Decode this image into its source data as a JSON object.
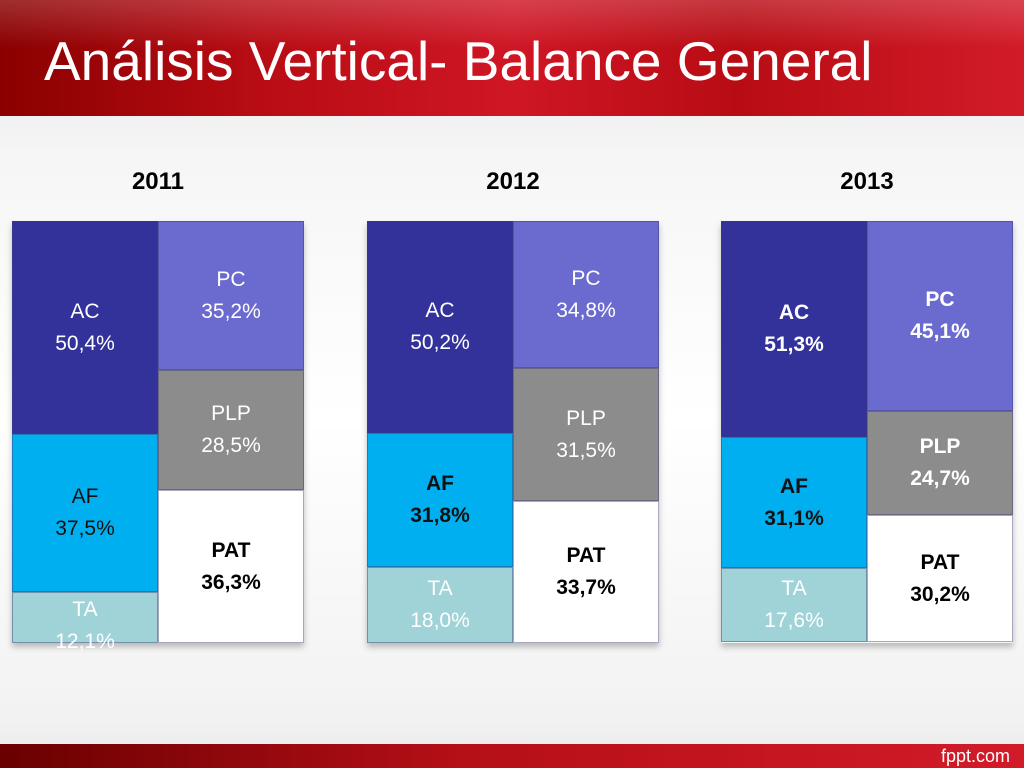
{
  "title": "Análisis Vertical- Balance General",
  "footer": "fppt.com",
  "colors": {
    "AC": "#32329a",
    "AF": "#00aff0",
    "TA": "#9fd3d8",
    "PC": "#6b6bcf",
    "PLP": "#8c8c8c",
    "PAT": "#ffffff"
  },
  "chart_data": {
    "type": "bar",
    "categories": [
      "2011",
      "2012",
      "2013"
    ],
    "series": [
      {
        "name": "AC",
        "side": "activo",
        "values": [
          50.4,
          50.2,
          51.3
        ],
        "labels": [
          "50,4%",
          "50,2%",
          "51,3%"
        ]
      },
      {
        "name": "AF",
        "side": "activo",
        "values": [
          37.5,
          31.8,
          31.1
        ],
        "labels": [
          "37,5%",
          "31,8%",
          "31,1%"
        ]
      },
      {
        "name": "TA",
        "side": "activo",
        "values": [
          12.1,
          18.0,
          17.6
        ],
        "labels": [
          "12,1%",
          "18,0%",
          "17,6%"
        ]
      },
      {
        "name": "PC",
        "side": "pasivo",
        "values": [
          35.2,
          34.8,
          45.1
        ],
        "labels": [
          "35,2%",
          "34,8%",
          "45,1%"
        ]
      },
      {
        "name": "PLP",
        "side": "pasivo",
        "values": [
          28.5,
          31.5,
          24.7
        ],
        "labels": [
          "28,5%",
          "31,5%",
          "24,7%"
        ]
      },
      {
        "name": "PAT",
        "side": "pasivo",
        "values": [
          36.3,
          33.7,
          30.2
        ],
        "labels": [
          "36,3%",
          "33,7%",
          "30,2%"
        ]
      }
    ]
  }
}
